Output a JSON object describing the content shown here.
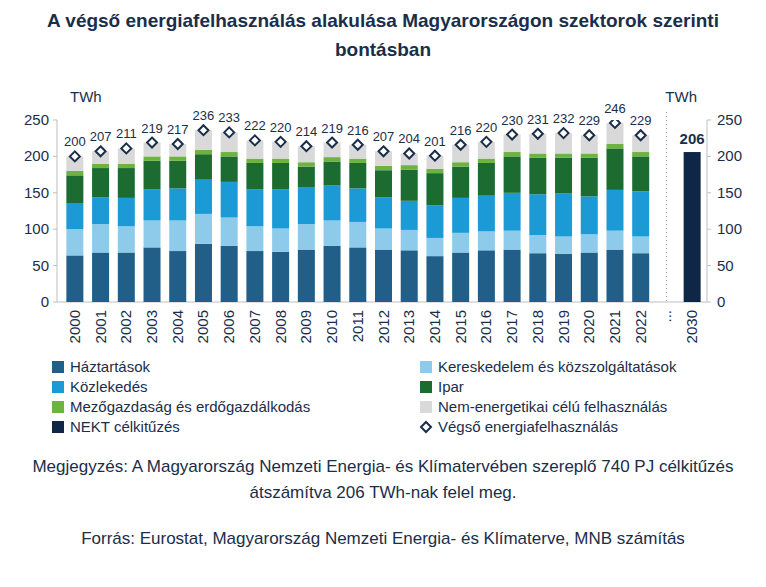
{
  "chart_data": {
    "type": "bar",
    "title": "A végső energiafelhasználás alakulása Magyarországon szektorok szerinti bontásban",
    "y_label": "TWh",
    "y2_label": "TWh",
    "notes": [
      "Megjegyzés: A Magyarország Nemzeti Energia- és Klímatervében szereplő 740 PJ célkitűzés átszámítva 206 TWh-nak felel meg.",
      "Forrás: Eurostat, Magyarország Nemzeti Energia- és Klímaterve, MNB számítás"
    ],
    "stacked": true,
    "grid": false,
    "legend": "bottom",
    "categories": [
      "2000",
      "2001",
      "2002",
      "2003",
      "2004",
      "2005",
      "2006",
      "2007",
      "2008",
      "2009",
      "2010",
      "2011",
      "2012",
      "2013",
      "2014",
      "2015",
      "2016",
      "2017",
      "2018",
      "2019",
      "2020",
      "2021",
      "2022",
      "...",
      "2030"
    ],
    "ylim": [
      0,
      250
    ],
    "yticks": [
      0,
      50,
      100,
      150,
      200,
      250
    ],
    "y2lim": [
      0,
      250
    ],
    "y2ticks": [
      0,
      50,
      100,
      150,
      200,
      250
    ],
    "series": [
      {
        "name": "Háztartások",
        "type": "bar",
        "color": "#215e88",
        "values": [
          64,
          68,
          68,
          75,
          70,
          80,
          77,
          70,
          69,
          72,
          77,
          75,
          72,
          71,
          63,
          68,
          71,
          72,
          67,
          66,
          68,
          72,
          67,
          null,
          null
        ]
      },
      {
        "name": "Kereskedelem és közszolgáltatások",
        "type": "bar",
        "color": "#8ecbea",
        "values": [
          36,
          39,
          36,
          37,
          42,
          41,
          39,
          34,
          32,
          35,
          35,
          35,
          29,
          28,
          25,
          27,
          26,
          26,
          25,
          24,
          25,
          26,
          23,
          null,
          null
        ]
      },
      {
        "name": "Közlekedés",
        "type": "bar",
        "color": "#1c9ad6",
        "values": [
          36,
          37,
          39,
          43,
          44,
          47,
          49,
          51,
          54,
          51,
          48,
          46,
          43,
          40,
          45,
          48,
          49,
          52,
          56,
          59,
          52,
          56,
          62,
          null,
          null
        ]
      },
      {
        "name": "Ipar",
        "type": "bar",
        "color": "#1c6b30",
        "values": [
          38,
          40,
          41,
          39,
          38,
          35,
          35,
          36,
          36,
          28,
          33,
          35,
          37,
          43,
          44,
          43,
          45,
          50,
          50,
          49,
          53,
          57,
          48,
          null,
          null
        ]
      },
      {
        "name": "Mezőgazdaság és erdőgazdálkodás",
        "type": "bar",
        "color": "#6db33f",
        "values": [
          6,
          6,
          6,
          6,
          6,
          6,
          6,
          6,
          6,
          6,
          6,
          6,
          6,
          6,
          6,
          6,
          6,
          6,
          6,
          6,
          6,
          6,
          6,
          null,
          null
        ]
      },
      {
        "name": "Nem-energetikai célú felhasználás",
        "type": "bar",
        "color": "#d9d9d9",
        "values": [
          20,
          17,
          21,
          19,
          17,
          27,
          27,
          25,
          23,
          22,
          20,
          19,
          20,
          16,
          18,
          24,
          23,
          24,
          27,
          28,
          25,
          29,
          23,
          null,
          null
        ]
      },
      {
        "name": "NEKT célkitűzés",
        "type": "bar",
        "color": "#0f2747",
        "data_labels": true,
        "values": [
          null,
          null,
          null,
          null,
          null,
          null,
          null,
          null,
          null,
          null,
          null,
          null,
          null,
          null,
          null,
          null,
          null,
          null,
          null,
          null,
          null,
          null,
          null,
          null,
          206
        ]
      },
      {
        "name": "Végső energiafelhasználás",
        "type": "scatter",
        "marker": "diamond",
        "color": "#1a2e4a",
        "data_labels": true,
        "values": [
          200,
          207,
          211,
          219,
          217,
          236,
          233,
          222,
          220,
          214,
          219,
          216,
          207,
          204,
          201,
          216,
          220,
          230,
          231,
          232,
          229,
          246,
          229,
          null,
          null
        ]
      }
    ]
  }
}
